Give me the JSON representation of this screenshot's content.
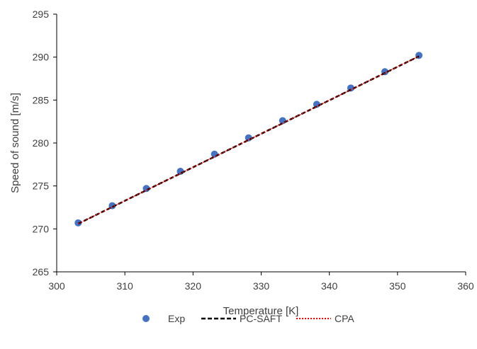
{
  "chart_data": {
    "type": "scatter",
    "title": "",
    "xlabel": "Temperature [K]",
    "ylabel": "Speed of sound [m/s]",
    "xlim": [
      300,
      360
    ],
    "ylim": [
      265,
      295
    ],
    "xticks": [
      300,
      310,
      320,
      330,
      340,
      350,
      360
    ],
    "yticks": [
      265,
      270,
      275,
      280,
      285,
      290,
      295
    ],
    "grid": false,
    "legend_position": "bottom",
    "series": [
      {
        "name": "Exp",
        "kind": "markers",
        "color": "#4472C4",
        "x": [
          303.15,
          308.15,
          313.15,
          318.15,
          323.15,
          328.15,
          333.15,
          338.15,
          343.15,
          348.15,
          353.15
        ],
        "y": [
          270.7,
          272.7,
          274.7,
          276.7,
          278.7,
          280.6,
          282.6,
          284.5,
          286.4,
          288.3,
          290.2
        ]
      },
      {
        "name": "PC-SAFT",
        "kind": "dashed-line",
        "color": "#000000",
        "x": [
          303.15,
          353.15
        ],
        "y": [
          270.6,
          290.1
        ]
      },
      {
        "name": "CPA",
        "kind": "dotted-line",
        "color": "#FF0000",
        "x": [
          303.15,
          353.15
        ],
        "y": [
          270.6,
          290.1
        ]
      }
    ]
  }
}
